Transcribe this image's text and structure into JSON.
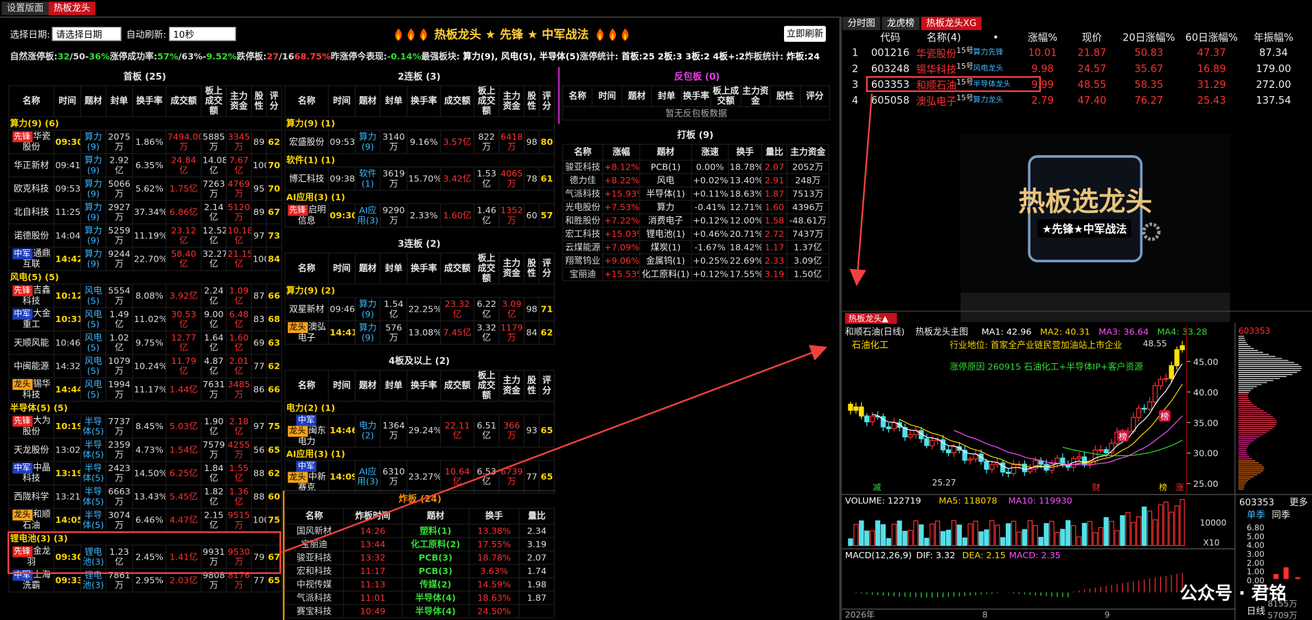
{
  "tabs": [
    "设置版面",
    "热板龙头"
  ],
  "toolbar": {
    "date_label": "选择日期:",
    "date_select": "请选择日期",
    "refresh_label": "自动刷新:",
    "refresh_select": "10秒",
    "title": "热板龙头 ★ 先锋 ★ 中军战法",
    "refresh_button": "立即刷新"
  },
  "stats": [
    {
      "text": "自然涨停板:",
      "color": "#ddd"
    },
    {
      "text": "32",
      "color": "#2ee02e"
    },
    {
      "text": "/50-",
      "color": "#ddd"
    },
    {
      "text": "36%",
      "color": "#2ee02e"
    },
    {
      "text": "涨停成功率:",
      "color": "#ddd"
    },
    {
      "text": "57%",
      "color": "#2ee02e"
    },
    {
      "text": "/63%-",
      "color": "#ddd"
    },
    {
      "text": "9.52%",
      "color": "#2ee02e"
    },
    {
      "text": "跌停板:",
      "color": "#ddd"
    },
    {
      "text": "27",
      "color": "#ff3b3b"
    },
    {
      "text": "/16",
      "color": "#ddd"
    },
    {
      "text": "68.75%",
      "color": "#ff3b3b"
    },
    {
      "text": "昨涨停今表现:",
      "color": "#ddd"
    },
    {
      "text": "-0.14%",
      "color": "#2ee02e"
    },
    {
      "text": "最强板块: ",
      "color": "#ddd"
    },
    {
      "text": "算力(9), 风电(5), 半导体(5)",
      "color": "#fff"
    },
    {
      "text": "涨停统计: ",
      "color": "#ddd"
    },
    {
      "text": "首板:25  2板:3  3板:2  4板+:2",
      "color": "#fff"
    },
    {
      "text": "炸板统计: ",
      "color": "#ddd"
    },
    {
      "text": "炸板:24",
      "color": "#fff"
    }
  ],
  "board1": {
    "title": "首板 (25)",
    "headers": [
      "名称",
      "时间",
      "题材",
      "封单",
      "换手率",
      "成交额",
      "板上成交额",
      "主力资金",
      "股性",
      "评分"
    ],
    "rows": [
      {
        "group": "算力(9) (6)"
      },
      {
        "tags": [
          {
            "text": "先锋",
            "bg": "#e52421",
            "fg": "#fff"
          }
        ],
        "cells": [
          "华瓷股份",
          "09:30",
          "算力(9)",
          "2075万",
          "1.86%",
          "7494.00万",
          "5885万",
          "3345万",
          89,
          62
        ]
      },
      {
        "cells": [
          "华正新材",
          "09:41",
          "算力(9)",
          "2.92亿",
          "6.35%",
          "24.84亿",
          "14.08亿",
          "7.67亿",
          100,
          70
        ]
      },
      {
        "cells": [
          "欧克科技",
          "09:53",
          "算力(9)",
          "5066万",
          "5.62%",
          "1.75亿",
          "7263万",
          "4769万",
          95,
          70
        ]
      },
      {
        "cells": [
          "北自科技",
          "11:25",
          "算力(9)",
          "2927万",
          "37.34%",
          "6.86亿",
          "2.14亿",
          "5120万",
          89,
          67
        ]
      },
      {
        "cells": [
          "诺德股份",
          "14:04",
          "算力(9)",
          "5259万",
          "11.19%",
          "23.12亿",
          "12.52亿",
          "10.18亿",
          97,
          73
        ]
      },
      {
        "tags": [
          {
            "text": "中军",
            "bg": "#1f3fbf",
            "fg": "#fff"
          }
        ],
        "cells": [
          "通鼎互联",
          "14:42",
          "算力(9)",
          "9244万",
          "22.70%",
          "58.40亿",
          "32.27亿",
          "21.15亿",
          100,
          84
        ]
      },
      {
        "group": "风电(5) (5)"
      },
      {
        "tags": [
          {
            "text": "先锋",
            "bg": "#e52421",
            "fg": "#fff"
          }
        ],
        "cells": [
          "吉鑫科技",
          "10:12",
          "风电(5)",
          "5554万",
          "8.08%",
          "3.92亿",
          "2.24亿",
          "1.09亿",
          87,
          66
        ]
      },
      {
        "tags": [
          {
            "text": "中军",
            "bg": "#1f3fbf",
            "fg": "#fff"
          }
        ],
        "cells": [
          "大金重工",
          "10:31",
          "风电(5)",
          "1.49亿",
          "11.02%",
          "30.53亿",
          "9.00亿",
          "6.48亿",
          83,
          68
        ]
      },
      {
        "cells": [
          "天顺风能",
          "10:46",
          "风电(5)",
          "1.02亿",
          "9.75%",
          "12.77亿",
          "1.64亿",
          "1.60亿",
          69,
          63
        ]
      },
      {
        "cells": [
          "中闽能源",
          "14:32",
          "风电(5)",
          "1079万",
          "10.24%",
          "11.79亿",
          "4.87亿",
          "2.01亿",
          77,
          62
        ]
      },
      {
        "tags": [
          {
            "text": "龙头",
            "bg": "#f5a31a",
            "fg": "#000"
          }
        ],
        "cells": [
          "锡华科技",
          "14:44",
          "风电(5)",
          "1994万",
          "11.17%",
          "1.44亿",
          "7631万",
          "3485万",
          86,
          66
        ]
      },
      {
        "group": "半导体(5) (5)"
      },
      {
        "tags": [
          {
            "text": "先锋",
            "bg": "#e52421",
            "fg": "#fff"
          }
        ],
        "cells": [
          "大为股份",
          "10:19",
          "半导体(5)",
          "7737万",
          "8.45%",
          "5.03亿",
          "1.90亿",
          "2.18亿",
          97,
          75
        ]
      },
      {
        "cells": [
          "天龙股份",
          "13:02",
          "半导体(5)",
          "2359万",
          "4.73%",
          "1.54亿",
          "7579万",
          "4255万",
          56,
          65
        ]
      },
      {
        "tags": [
          {
            "text": "中军",
            "bg": "#1f3fbf",
            "fg": "#fff"
          }
        ],
        "cells": [
          "中晶科技",
          "13:19",
          "半导体(5)",
          "2423万",
          "14.50%",
          "6.25亿",
          "1.84亿",
          "1.55亿",
          88,
          62
        ]
      },
      {
        "cells": [
          "西陇科学",
          "13:21",
          "半导体(5)",
          "6663万",
          "13.43%",
          "5.45亿",
          "1.82亿",
          "1.36亿",
          88,
          60
        ]
      },
      {
        "tags": [
          {
            "text": "龙头",
            "bg": "#f5a31a",
            "fg": "#000"
          }
        ],
        "cells": [
          "和顺石油",
          "14:05",
          "半导体(5)",
          "3074万",
          "6.46%",
          "4.47亿",
          "2.15亿",
          "9515万",
          100,
          75
        ]
      },
      {
        "group": "锂电池(3) (3)"
      },
      {
        "tags": [
          {
            "text": "先锋",
            "bg": "#e52421",
            "fg": "#fff"
          }
        ],
        "cells": [
          "金龙羽",
          "09:30",
          "锂电池(3)",
          "1.23亿",
          "2.45%",
          "1.41亿",
          "9931万",
          "9530万",
          79,
          67
        ]
      },
      {
        "tags": [
          {
            "text": "中军",
            "bg": "#1f3fbf",
            "fg": "#fff"
          }
        ],
        "cells": [
          "上海洗霸",
          "09:33",
          "锂电池(3)",
          "7861万",
          "2.95%",
          "2.03亿",
          "9808万",
          "8176万",
          77,
          65
        ]
      }
    ]
  },
  "board2": {
    "title": "2连板 (3)",
    "headers": [
      "名称",
      "时间",
      "题材",
      "封单",
      "换手率",
      "成交额",
      "板上成交额",
      "主力资金",
      "股性",
      "评分"
    ],
    "rows": [
      {
        "group": "算力(9) (1)"
      },
      {
        "cells": [
          "宏盛股份",
          "09:53",
          "算力(9)",
          "3140万",
          "9.16%",
          "3.57亿",
          "822万",
          "6418万",
          98,
          80
        ]
      },
      {
        "group": "软件(1) (1)"
      },
      {
        "cells": [
          "博汇科技",
          "09:38",
          "软件(1)",
          "3619万",
          "15.70%",
          "3.42亿",
          "1.53亿",
          "4065万",
          78,
          61
        ]
      },
      {
        "group": "AI应用(3) (1)"
      },
      {
        "tags": [
          {
            "text": "先锋",
            "bg": "#e52421",
            "fg": "#fff"
          }
        ],
        "cells": [
          "启明信息",
          "09:30",
          "AI应用(3)",
          "9290万",
          "2.33%",
          "1.60亿",
          "1.46亿",
          "1352万",
          60,
          57
        ]
      }
    ]
  },
  "board3": {
    "title": "3连板 (2)",
    "headers": [
      "名称",
      "时间",
      "题材",
      "封单",
      "换手率",
      "成交额",
      "板上成交额",
      "主力资金",
      "股性",
      "评分"
    ],
    "rows": [
      {
        "group": "算力(9) (2)"
      },
      {
        "cells": [
          "双星新材",
          "09:46",
          "算力(9)",
          "1.54亿",
          "22.25%",
          "23.32亿",
          "6.22亿",
          "3.09亿",
          98,
          71
        ]
      },
      {
        "tags": [
          {
            "text": "龙头",
            "bg": "#f5a31a",
            "fg": "#000"
          }
        ],
        "cells": [
          "澳弘电子",
          "14:41",
          "算力(9)",
          "576万",
          "13.08%",
          "7.45亿",
          "3.32亿",
          "1179万",
          84,
          62
        ]
      }
    ]
  },
  "board4": {
    "title": "4板及以上 (2)",
    "headers": [
      "名称",
      "时间",
      "题材",
      "封单",
      "换手率",
      "成交额",
      "板上成交额",
      "主力资金",
      "股性",
      "评分"
    ],
    "rows": [
      {
        "group": "电力(2) (1)"
      },
      {
        "tags": [
          {
            "text": "中军",
            "bg": "#1f3fbf",
            "fg": "#fff"
          },
          {
            "text": "龙头",
            "bg": "#f5a31a",
            "fg": "#000"
          }
        ],
        "cells": [
          "闽东电力",
          "14:46",
          "电力(2)",
          "1364万",
          "29.24%",
          "22.11亿",
          "6.51亿",
          "366万",
          93,
          65
        ]
      },
      {
        "group": "AI应用(3) (1)"
      },
      {
        "tags": [
          {
            "text": "中军",
            "bg": "#1f3fbf",
            "fg": "#fff"
          },
          {
            "text": "龙头",
            "bg": "#f5a31a",
            "fg": "#000"
          }
        ],
        "cells": [
          "中新赛克",
          "14:09",
          "AI应用(3)",
          "6310万",
          "23.27%",
          "10.64亿",
          "6.53亿",
          "6739万",
          77,
          65
        ]
      }
    ]
  },
  "fanbao": {
    "title": "反包板 (0)",
    "headers": [
      "名称",
      "时间",
      "题材",
      "封单",
      "换手率",
      "板上成交额",
      "主力资金",
      "股性",
      "评分"
    ],
    "empty": "暂无反包板数据"
  },
  "daban": {
    "title": "打板 (9)",
    "headers": [
      "名称",
      "涨幅",
      "题材",
      "涨速",
      "换手",
      "量比",
      "主力资金"
    ],
    "rows": [
      [
        "骏亚科技",
        "+8.12%",
        "PCB(1)",
        "0.00%",
        "18.78%",
        "2.07",
        "2052万"
      ],
      [
        "德力佳",
        "+8.22%",
        "风电",
        "+0.02%",
        "13.40%",
        "2.91",
        "248万"
      ],
      [
        "气派科技",
        "+15.93%",
        "半导体(1)",
        "+0.11%",
        "18.63%",
        "1.87",
        "7513万"
      ],
      [
        "光电股份",
        "+7.53%",
        "算力",
        "-0.41%",
        "12.71%",
        "1.60",
        "4396万"
      ],
      [
        "和胜股份",
        "+7.22%",
        "消费电子",
        "+0.12%",
        "12.00%",
        "1.58",
        "-48.61万"
      ],
      [
        "宏工科技",
        "+15.03%",
        "锂电池(1)",
        "+0.46%",
        "20.71%",
        "2.72",
        "7437万"
      ],
      [
        "云煤能源",
        "+7.09%",
        "煤炭(1)",
        "-1.67%",
        "18.42%",
        "1.17",
        "1.37亿"
      ],
      [
        "翔鹭钨业",
        "+9.06%",
        "金属钨(1)",
        "+0.25%",
        "22.69%",
        "2.33",
        "3.09亿"
      ],
      [
        "宝丽迪",
        "+15.53%",
        "化工原料(1)",
        "+0.12%",
        "17.55%",
        "3.19",
        "1.50亿"
      ]
    ]
  },
  "zhaban": {
    "title": "炸板 (24)",
    "headers": [
      "名称",
      "炸板时间",
      "题材",
      "换手",
      "量比"
    ],
    "rows": [
      [
        "国风新材",
        "14:26",
        "塑料(1)",
        "13.38%",
        "2.34"
      ],
      [
        "宝丽迪",
        "13:44",
        "化工原料(2)",
        "17.55%",
        "3.19"
      ],
      [
        "骏亚科技",
        "13:32",
        "PCB(3)",
        "18.78%",
        "2.07"
      ],
      [
        "宏和科技",
        "11:17",
        "PCB(3)",
        "3.63%",
        "1.74"
      ],
      [
        "中视传媒",
        "11:13",
        "传媒(2)",
        "14.59%",
        "1.98"
      ],
      [
        "气派科技",
        "11:01",
        "半导体(4)",
        "18.63%",
        "1.87"
      ],
      [
        "赛宝科技",
        "10:49",
        "半导体(4)",
        "24.50%",
        null
      ]
    ]
  },
  "right": {
    "tabs": [
      "分时图",
      "龙虎榜",
      "热板龙头XG"
    ],
    "headers": [
      "代码",
      "名称(4)",
      "•",
      "涨幅%",
      "现价",
      "20日涨幅%",
      "60日涨幅%",
      "年振幅%"
    ],
    "rows": [
      {
        "no": "1",
        "code": "001216",
        "name": "华瓷股份",
        "tag": "15号",
        "note": "算力先锋",
        "change": "10.01",
        "price": "21.87",
        "r20": "50.83",
        "r60": "47.37",
        "amp": "87.34"
      },
      {
        "no": "2",
        "code": "603248",
        "name": "锡华科技",
        "tag": "15号",
        "note": "风电龙头",
        "change": "9.98",
        "price": "24.57",
        "r20": "35.67",
        "r60": "16.89",
        "amp": "179.00"
      },
      {
        "no": "3",
        "code": "603353",
        "name": "和顺石油",
        "tag": "15号",
        "note": "半导体龙头",
        "change": "9.99",
        "price": "48.55",
        "r20": "58.35",
        "r60": "31.29",
        "amp": "272.00"
      },
      {
        "no": "4",
        "code": "605058",
        "name": "澳弘电子",
        "tag": "15号",
        "note": "算力龙头",
        "change": "2.79",
        "price": "47.40",
        "r20": "76.27",
        "r60": "25.43",
        "amp": "137.54"
      }
    ]
  },
  "logo": {
    "title": "热板选龙头",
    "subtitle": "★先锋★中军战法"
  },
  "kline": {
    "tab": "热板龙头▲",
    "name": "和顺石油(日线)",
    "indicator": "热板龙头主图",
    "ma": [
      {
        "text": "MA1: 42.96",
        "color": "#ffffff"
      },
      {
        "text": "MA2: 40.31",
        "color": "#ffd800"
      },
      {
        "text": "MA3: 36.64",
        "color": "#ff4fff"
      },
      {
        "text": "MA4: 33.28",
        "color": "#33dd33"
      }
    ],
    "industry": "石油化工",
    "position": "行业地位: 首家全产业链民营加油站上市企业",
    "reason": "涨停原因 260915 石油化工+半导体IP+客户资源",
    "high_label": "48.55",
    "low_label": "25.27",
    "yticks": [
      {
        "value": 45,
        "label": "45.00"
      },
      {
        "value": 40,
        "label": "40.00"
      },
      {
        "value": 35,
        "label": "35.00"
      },
      {
        "value": 30,
        "label": "30.00"
      },
      {
        "value": 25,
        "label": "25.00"
      }
    ],
    "badges": [
      "榜",
      "榜"
    ],
    "bottom_marks": [
      "减",
      "财",
      "榜",
      "涨"
    ],
    "volume": {
      "legend": [
        {
          "text": "VOLUME: 122719",
          "color": "#ffffff"
        },
        {
          "text": "MA5: 118078",
          "color": "#ffd800"
        },
        {
          "text": "MA10: 119930",
          "color": "#ff4fff"
        }
      ],
      "tick": "10000",
      "scale": "X10"
    },
    "macd": {
      "legend": [
        {
          "text": "MACD(12,26,9)",
          "color": "#ffffff"
        },
        {
          "text": "DIF: 3.32",
          "color": "#ffffff"
        },
        {
          "text": "DEA: 2.15",
          "color": "#ffd800"
        },
        {
          "text": "MACD: 2.35",
          "color": "#ff4fff"
        }
      ]
    },
    "dates": [
      "2026年",
      "8",
      "9"
    ],
    "side": {
      "code": "603353",
      "code2": "603353",
      "more": "更多",
      "tabs": [
        "单季",
        "同季"
      ],
      "ticks": [
        "6.80",
        "5.00",
        "4.00",
        "3.00",
        "2.00",
        "1.00",
        "0.00"
      ],
      "period": "日线",
      "vals": [
        "8155万",
        "5709万"
      ]
    },
    "watermark": "公众号 · 君铭"
  }
}
